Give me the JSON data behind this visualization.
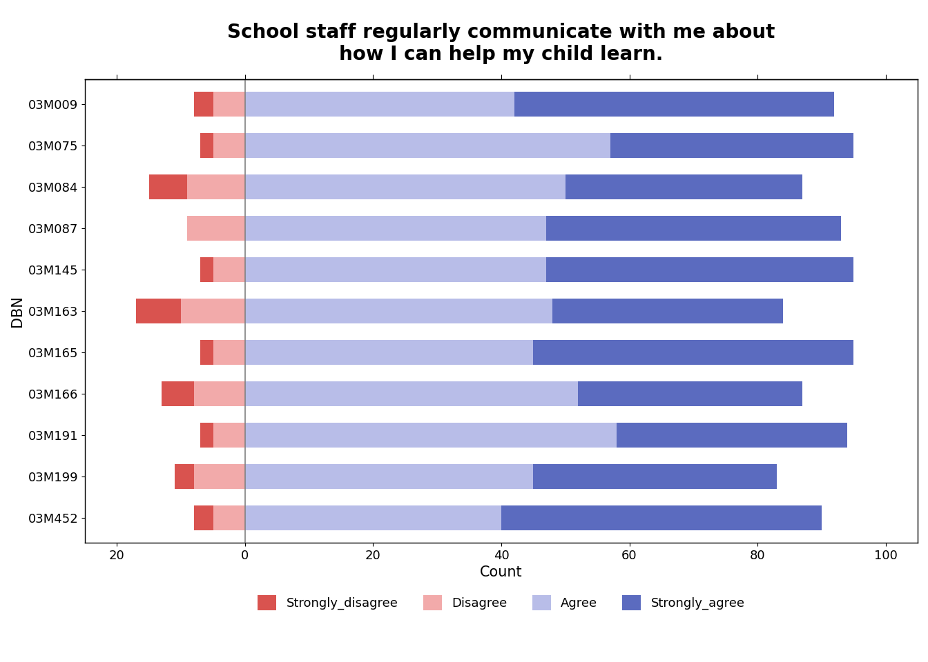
{
  "title": "School staff regularly communicate with me about\nhow I can help my child learn.",
  "xlabel": "Count",
  "ylabel": "DBN",
  "categories": [
    "03M009",
    "03M075",
    "03M084",
    "03M087",
    "03M145",
    "03M163",
    "03M165",
    "03M166",
    "03M191",
    "03M199",
    "03M452"
  ],
  "strongly_disagree": [
    3,
    2,
    6,
    0,
    2,
    7,
    2,
    5,
    2,
    3,
    3
  ],
  "disagree": [
    5,
    5,
    9,
    9,
    5,
    10,
    5,
    8,
    5,
    8,
    5
  ],
  "agree": [
    42,
    57,
    50,
    47,
    47,
    48,
    45,
    52,
    58,
    45,
    40
  ],
  "strongly_agree": [
    50,
    38,
    37,
    46,
    48,
    36,
    50,
    35,
    36,
    38,
    50
  ],
  "color_strongly_disagree": "#d9534f",
  "color_disagree": "#f2aaaa",
  "color_agree": "#b8bde8",
  "color_strongly_agree": "#5b6bbf",
  "xlim": [
    -25,
    105
  ],
  "xticks": [
    -20,
    0,
    20,
    40,
    60,
    80,
    100
  ],
  "xticklabels": [
    "20",
    "0",
    "20",
    "40",
    "60",
    "80",
    "100"
  ],
  "background_color": "#ffffff",
  "title_fontsize": 20,
  "axis_fontsize": 15,
  "tick_fontsize": 13,
  "legend_fontsize": 13,
  "bar_height": 0.6
}
